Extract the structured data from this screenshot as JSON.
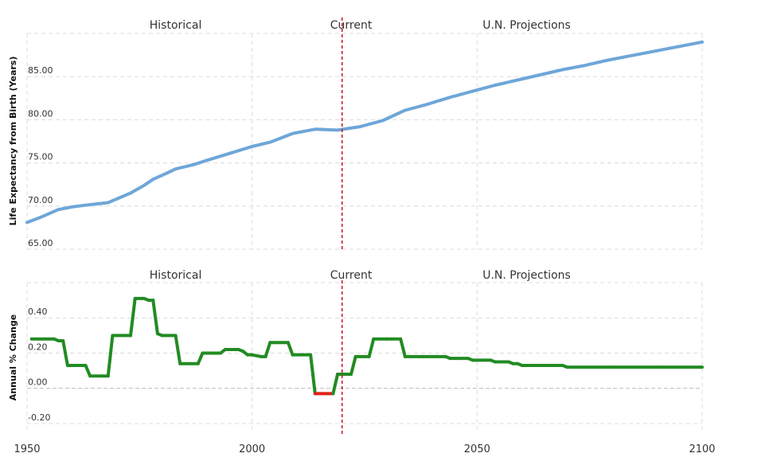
{
  "chart_data": [
    {
      "type": "line",
      "ylabel": "Life Expectancy from Birth (Years)",
      "xlim": [
        1950,
        2100
      ],
      "ylim": [
        65,
        90
      ],
      "yticks": [
        65,
        70,
        75,
        80,
        85
      ],
      "tick_decimals": 2,
      "grid": true,
      "region_labels": [
        {
          "text": "Historical",
          "x": 1983
        },
        {
          "text": "Current",
          "x": 2022
        },
        {
          "text": "U.N. Projections",
          "x": 2061
        }
      ],
      "current_year": 2020,
      "color": "#6ea6d8",
      "series": [
        {
          "x": [
            1950,
            1953,
            1957,
            1960,
            1963,
            1968,
            1973,
            1976,
            1978,
            1981,
            1983,
            1987,
            1990,
            1995,
            2000,
            2004,
            2006,
            2009,
            2014,
            2019,
            2024,
            2029,
            2034,
            2039,
            2044,
            2049,
            2054,
            2059,
            2064,
            2069,
            2074,
            2079,
            2084,
            2089,
            2094,
            2100
          ],
          "y": [
            68.1,
            68.7,
            69.6,
            69.9,
            70.1,
            70.4,
            71.5,
            72.4,
            73.1,
            73.8,
            74.3,
            74.8,
            75.3,
            76.1,
            76.9,
            77.4,
            77.8,
            78.4,
            78.9,
            78.8,
            79.2,
            79.9,
            81.1,
            81.8,
            82.6,
            83.3,
            84.0,
            84.6,
            85.2,
            85.8,
            86.3,
            86.9,
            87.4,
            87.9,
            88.4,
            89.0
          ]
        }
      ]
    },
    {
      "type": "line",
      "ylabel": "Annual % Change",
      "xlim": [
        1950,
        2100
      ],
      "ylim": [
        -0.25,
        0.6
      ],
      "yticks": [
        -0.2,
        0.0,
        0.2,
        0.4
      ],
      "tick_decimals": 2,
      "zero_line": true,
      "grid": true,
      "x_ticks": [
        1950,
        2000,
        2050,
        2100
      ],
      "region_labels": [
        {
          "text": "Historical",
          "x": 1983
        },
        {
          "text": "Current",
          "x": 2022
        },
        {
          "text": "U.N. Projections",
          "x": 2061
        }
      ],
      "current_year": 2020,
      "color_positive": "#228b22",
      "color_negative": "#e0201a",
      "series": [
        {
          "x": [
            1951,
            1956,
            1957,
            1958,
            1959,
            1960,
            1963,
            1964,
            1968,
            1969,
            1973,
            1974,
            1976,
            1977,
            1978,
            1979,
            1980,
            1983,
            1984,
            1988,
            1989,
            1993,
            1994,
            1997,
            1998,
            1999,
            2000,
            2002,
            2003,
            2004,
            2005,
            2008,
            2009,
            2013,
            2014,
            2018,
            2019,
            2022,
            2023,
            2026,
            2027,
            2030,
            2031,
            2033,
            2034,
            2038,
            2043,
            2044,
            2048,
            2049,
            2053,
            2054,
            2057,
            2058,
            2059,
            2060,
            2061,
            2068,
            2069,
            2070,
            2080,
            2090,
            2100
          ],
          "y": [
            0.28,
            0.28,
            0.27,
            0.27,
            0.13,
            0.13,
            0.13,
            0.07,
            0.07,
            0.3,
            0.3,
            0.51,
            0.51,
            0.5,
            0.5,
            0.31,
            0.3,
            0.3,
            0.14,
            0.14,
            0.2,
            0.2,
            0.22,
            0.22,
            0.21,
            0.19,
            0.19,
            0.18,
            0.18,
            0.26,
            0.26,
            0.26,
            0.19,
            0.19,
            -0.03,
            -0.03,
            0.08,
            0.08,
            0.18,
            0.18,
            0.28,
            0.28,
            0.28,
            0.28,
            0.18,
            0.18,
            0.18,
            0.17,
            0.17,
            0.16,
            0.16,
            0.15,
            0.15,
            0.14,
            0.14,
            0.13,
            0.13,
            0.13,
            0.13,
            0.12,
            0.12,
            0.12,
            0.12
          ]
        }
      ]
    }
  ]
}
